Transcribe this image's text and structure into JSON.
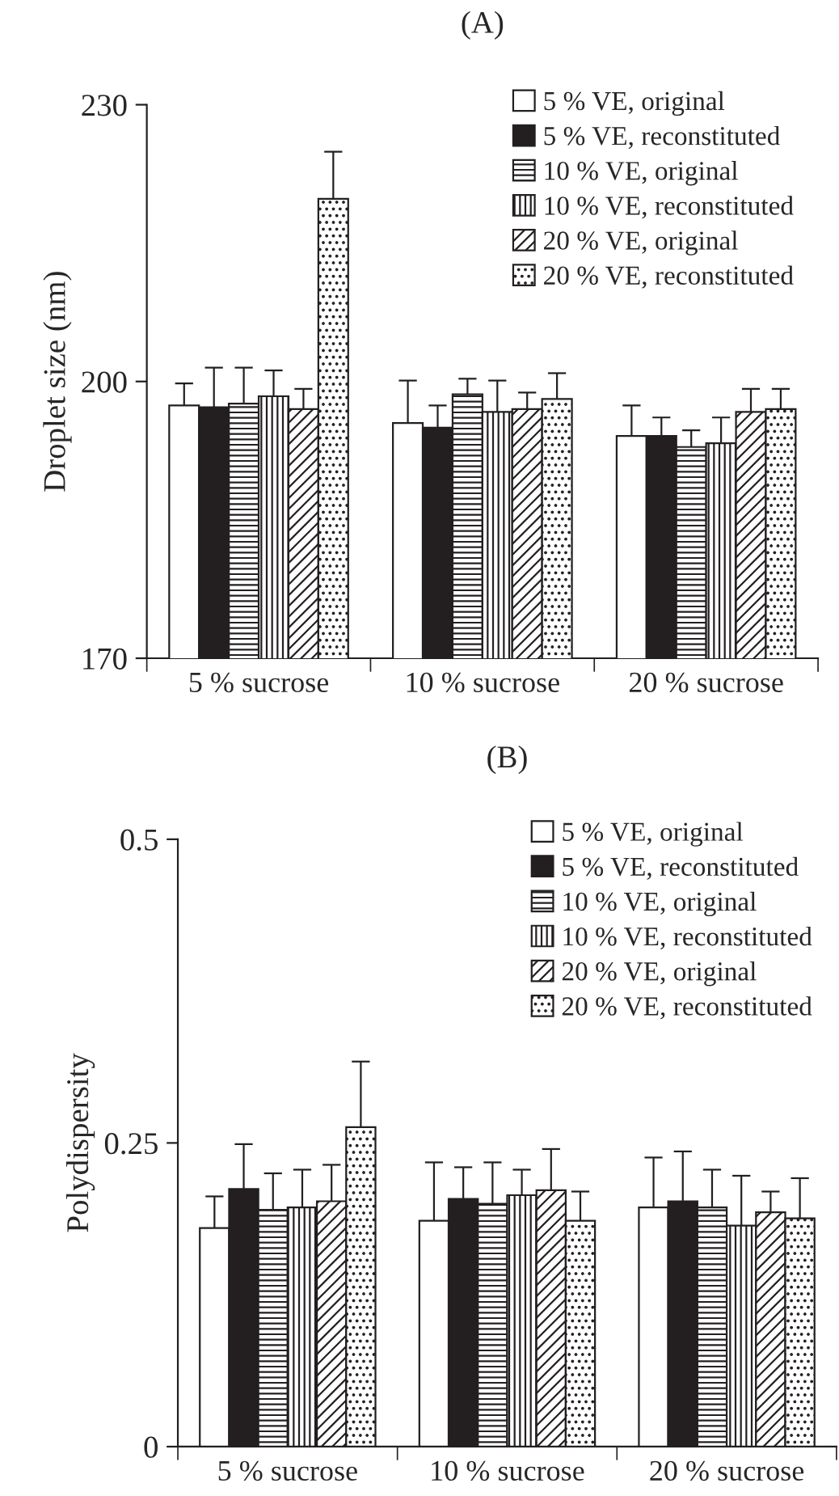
{
  "chart_data": [
    {
      "type": "bar",
      "title": "(A)",
      "ylabel": "Droplet size (nm)",
      "categories": [
        "5 % sucrose",
        "10 % sucrose",
        "20 % sucrose"
      ],
      "ylim": [
        170,
        230
      ],
      "yticks": [
        170,
        200,
        230
      ],
      "grid": false,
      "legend": "top right",
      "series": [
        {
          "name": "5 % VE, original",
          "color": "#ffffff",
          "values": [
            197.4,
            195.5,
            194.1
          ],
          "errors": [
            2.4,
            4.6,
            3.3
          ]
        },
        {
          "name": "5 % VE, reconstituted",
          "color": "#231f20",
          "values": [
            197.2,
            195.0,
            194.1
          ],
          "errors": [
            4.3,
            2.4,
            2.0
          ]
        },
        {
          "name": "10 % VE, original",
          "color": "#231f20",
          "values": [
            197.6,
            198.6,
            192.9
          ],
          "errors": [
            3.9,
            1.7,
            1.8
          ]
        },
        {
          "name": "10 % VE, reconstituted",
          "color": "#231f20",
          "values": [
            198.4,
            196.7,
            193.3
          ],
          "errors": [
            2.8,
            3.4,
            2.8
          ]
        },
        {
          "name": "20 % VE, original",
          "color": "#231f20",
          "values": [
            197.0,
            197.0,
            196.7
          ],
          "errors": [
            2.2,
            1.8,
            2.5
          ]
        },
        {
          "name": "20 % VE, reconstituted",
          "color": "#231f20",
          "values": [
            219.8,
            198.1,
            197.0
          ],
          "errors": [
            5.1,
            2.8,
            2.2
          ]
        }
      ]
    },
    {
      "type": "bar",
      "title": "(B)",
      "ylabel": "Polydispersity",
      "categories": [
        "5 % sucrose",
        "10 % sucrose",
        "20 % sucrose"
      ],
      "ylim": [
        0,
        0.5
      ],
      "yticks": [
        0,
        0.25,
        0.5
      ],
      "grid": false,
      "legend": "top right",
      "series": [
        {
          "name": "5 % VE, original",
          "color": "#ffffff",
          "values": [
            0.18,
            0.186,
            0.197
          ],
          "errors": [
            0.026,
            0.048,
            0.041
          ]
        },
        {
          "name": "5 % VE, reconstituted",
          "color": "#231f20",
          "values": [
            0.212,
            0.204,
            0.202
          ],
          "errors": [
            0.037,
            0.026,
            0.041
          ]
        },
        {
          "name": "10 % VE, original",
          "color": "#231f20",
          "values": [
            0.195,
            0.2,
            0.197
          ],
          "errors": [
            0.03,
            0.034,
            0.031
          ]
        },
        {
          "name": "10 % VE, reconstituted",
          "color": "#231f20",
          "values": [
            0.197,
            0.207,
            0.182
          ],
          "errors": [
            0.031,
            0.021,
            0.041
          ]
        },
        {
          "name": "20 % VE, original",
          "color": "#231f20",
          "values": [
            0.202,
            0.211,
            0.193
          ],
          "errors": [
            0.03,
            0.034,
            0.017
          ]
        },
        {
          "name": "20 % VE, reconstituted",
          "color": "#231f20",
          "values": [
            0.263,
            0.186,
            0.188
          ],
          "errors": [
            0.054,
            0.024,
            0.033
          ]
        }
      ]
    }
  ]
}
